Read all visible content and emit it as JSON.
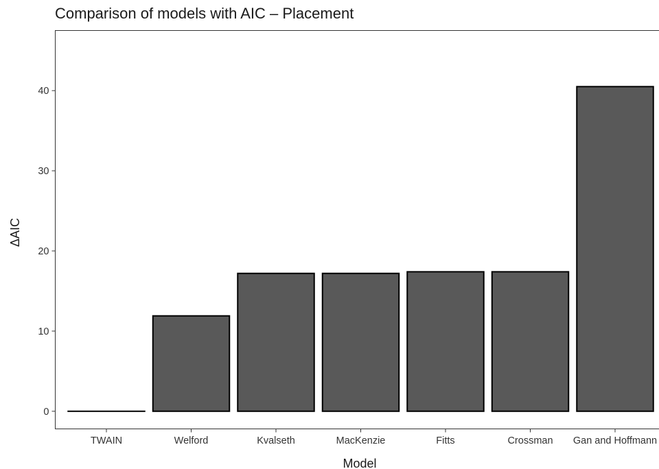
{
  "chart_data": {
    "type": "bar",
    "title": "Comparison of models with AIC – Placement",
    "xlabel": "Model",
    "ylabel": "ΔAIC",
    "categories": [
      "TWAIN",
      "Welford",
      "Kvalseth",
      "MacKenzie",
      "Fitts",
      "Crossman",
      "Gan and Hoffmann"
    ],
    "values": [
      0,
      11.9,
      17.2,
      17.2,
      17.4,
      17.4,
      40.5
    ],
    "ylim": [
      -2.2,
      47.5
    ],
    "yticks": [
      0,
      10,
      20,
      30,
      40
    ],
    "grid": false,
    "legend": "none",
    "bar_color": "#595959",
    "bar_outline_color": "#000000"
  }
}
